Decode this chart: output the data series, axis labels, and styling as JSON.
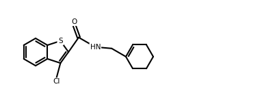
{
  "bg_color": "#ffffff",
  "line_color": "#000000",
  "line_width": 1.5,
  "label_S": "S",
  "label_O": "O",
  "label_Cl": "Cl",
  "label_HN": "HN",
  "figsize": [
    3.8,
    1.52
  ],
  "dpi": 100
}
